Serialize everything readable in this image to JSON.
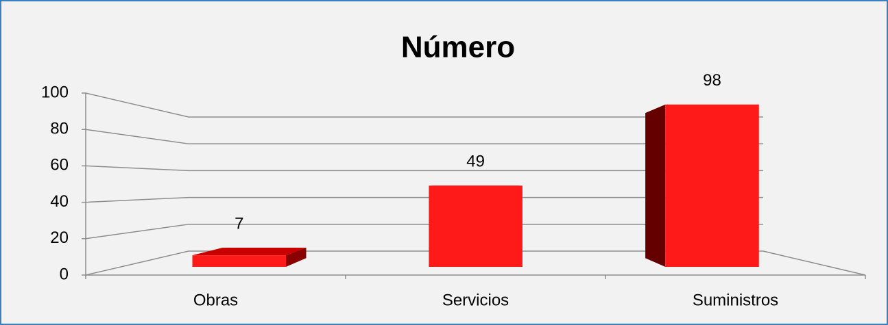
{
  "chart_data": {
    "type": "bar3d",
    "title": "Número",
    "categories": [
      "Obras",
      "Servicios",
      "Suministros"
    ],
    "values": [
      7,
      49,
      98
    ],
    "color": "#ff1a1a",
    "ylim": [
      0,
      100
    ],
    "yticks": [
      0,
      20,
      40,
      60,
      80,
      100
    ],
    "grid": true
  }
}
